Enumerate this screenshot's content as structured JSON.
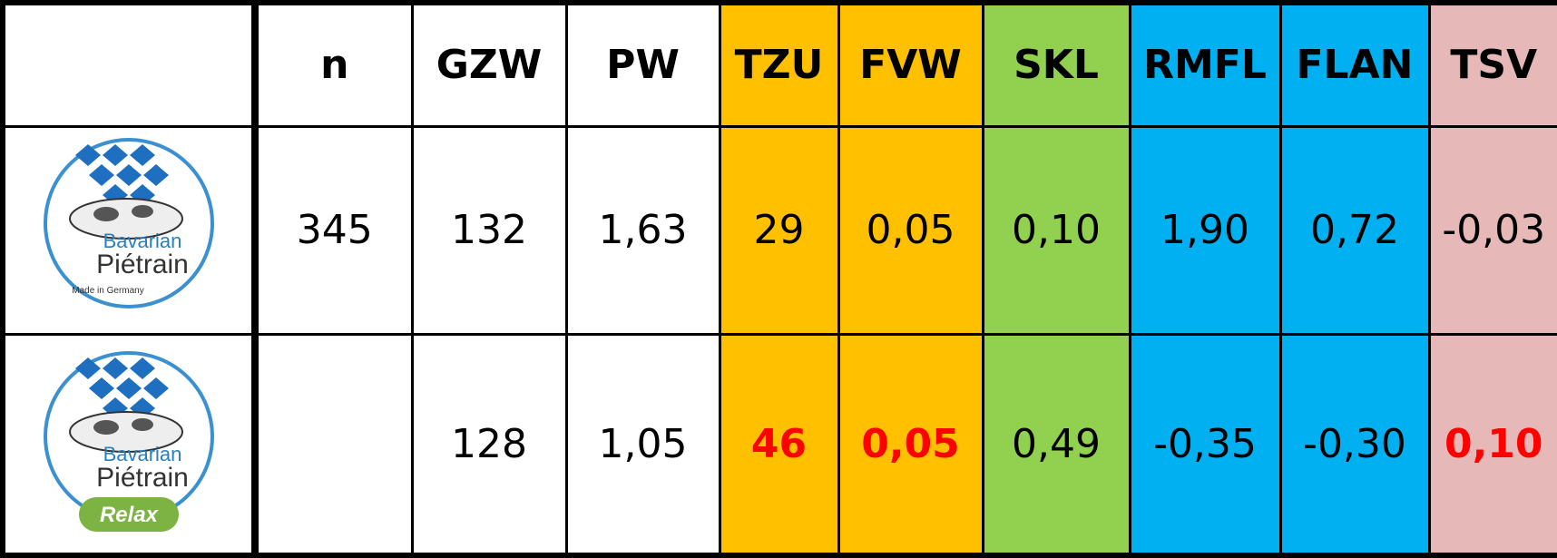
{
  "table": {
    "columns": [
      {
        "label": "n",
        "color": "#ffffff"
      },
      {
        "label": "GZW",
        "color": "#ffffff"
      },
      {
        "label": "PW",
        "color": "#ffffff"
      },
      {
        "label": "TZU",
        "color": "#ffc000"
      },
      {
        "label": "FVW",
        "color": "#ffc000"
      },
      {
        "label": "SKL",
        "color": "#92d050"
      },
      {
        "label": "RMFL",
        "color": "#00b0f0"
      },
      {
        "label": "FLAN",
        "color": "#00b0f0"
      },
      {
        "label": "TSV",
        "color": "#e6b9b8"
      }
    ],
    "rows": [
      {
        "logo": {
          "brand": "Bavarian",
          "breed": "Piétrain",
          "tagline": "Made in Germany"
        },
        "cells": [
          "345",
          "132",
          "1,63",
          "29",
          "0,05",
          "0,10",
          "1,90",
          "0,72",
          "-0,03"
        ],
        "highlight": []
      },
      {
        "logo": {
          "brand": "Bavarian",
          "breed": "Piétrain",
          "badge": "Relax"
        },
        "cells": [
          null,
          "128",
          "1,05",
          "46",
          "0,05",
          "0,49",
          "-0,35",
          "-0,30",
          "0,10"
        ],
        "highlight": [
          3,
          4,
          8
        ]
      }
    ]
  }
}
